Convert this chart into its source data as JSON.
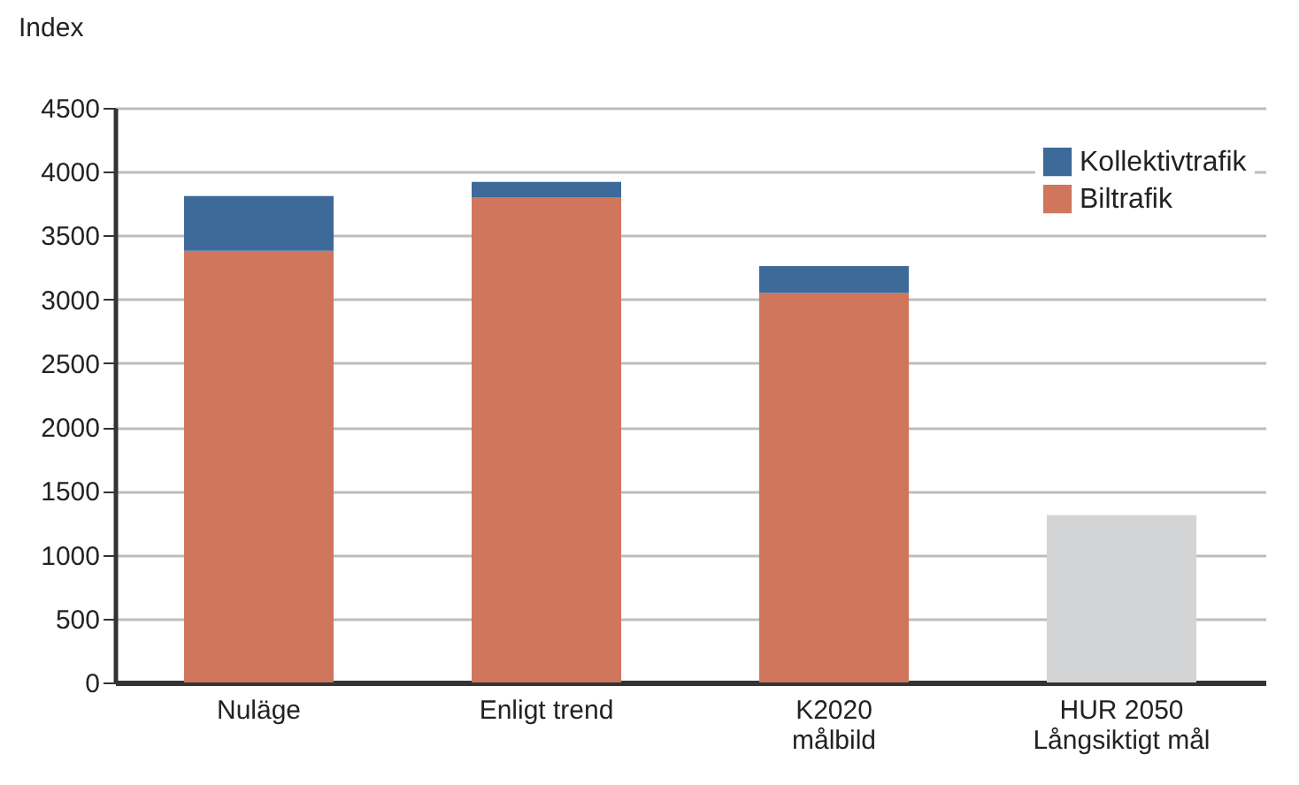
{
  "chart_data": {
    "type": "bar",
    "ylabel": "Index",
    "stacked": true,
    "categories": [
      "Nuläge",
      "Enligt trend",
      "K2020\nmålbild",
      "HUR 2050\nLångsiktigt mål"
    ],
    "series": [
      {
        "name": "Biltrafik",
        "color": "#cf765c",
        "values": [
          3380,
          3800,
          3050,
          null
        ]
      },
      {
        "name": "Kollektivtrafik",
        "color": "#3e6a9a",
        "values": [
          430,
          120,
          210,
          null
        ]
      },
      {
        "color": "#d3d4d6",
        "values": [
          null,
          null,
          null,
          1310
        ]
      }
    ],
    "ylim": [
      0,
      4500
    ],
    "yticks": [
      0,
      500,
      1000,
      1500,
      2000,
      2500,
      3000,
      3500,
      4000,
      4500
    ],
    "grid": "y",
    "legend": "top right"
  }
}
